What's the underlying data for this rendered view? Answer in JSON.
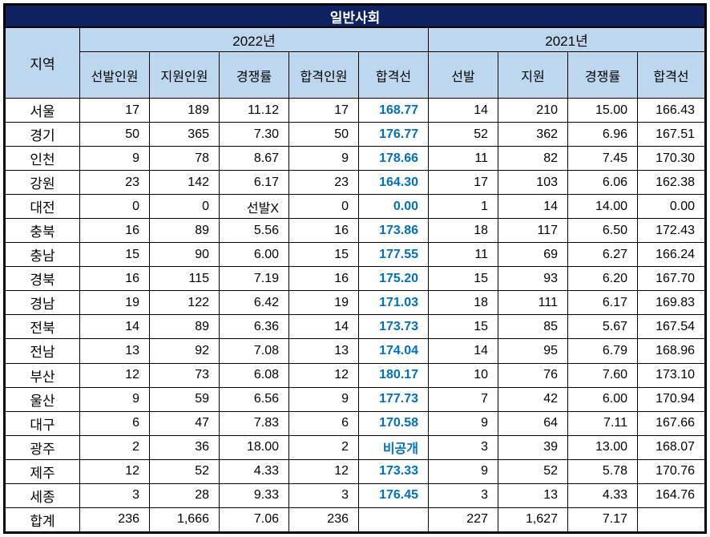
{
  "title": "일반사회",
  "header": {
    "region_label": "지역",
    "groups": [
      {
        "label": "2022년",
        "columns": [
          "선발인원",
          "지원인원",
          "경쟁률",
          "합격인원",
          "합격선"
        ]
      },
      {
        "label": "2021년",
        "columns": [
          "선발",
          "지원",
          "경쟁률",
          "합격선"
        ]
      }
    ]
  },
  "highlight": {
    "column_index": 4,
    "note": "2022 합격선 values shown bold blue"
  },
  "rows": [
    {
      "region": "서울",
      "values": [
        "17",
        "189",
        "11.12",
        "17",
        "168.77",
        "14",
        "210",
        "15.00",
        "166.43"
      ]
    },
    {
      "region": "경기",
      "values": [
        "50",
        "365",
        "7.30",
        "50",
        "176.77",
        "52",
        "362",
        "6.96",
        "167.51"
      ]
    },
    {
      "region": "인천",
      "values": [
        "9",
        "78",
        "8.67",
        "9",
        "178.66",
        "11",
        "82",
        "7.45",
        "170.30"
      ]
    },
    {
      "region": "강원",
      "values": [
        "23",
        "142",
        "6.17",
        "23",
        "164.30",
        "17",
        "103",
        "6.06",
        "162.38"
      ]
    },
    {
      "region": "대전",
      "values": [
        "0",
        "0",
        "선발X",
        "0",
        "0.00",
        "1",
        "14",
        "14.00",
        "0.00"
      ]
    },
    {
      "region": "충북",
      "values": [
        "16",
        "89",
        "5.56",
        "16",
        "173.86",
        "18",
        "117",
        "6.50",
        "172.43"
      ]
    },
    {
      "region": "충남",
      "values": [
        "15",
        "90",
        "6.00",
        "15",
        "177.55",
        "11",
        "69",
        "6.27",
        "166.24"
      ]
    },
    {
      "region": "경북",
      "values": [
        "16",
        "115",
        "7.19",
        "16",
        "175.20",
        "15",
        "93",
        "6.20",
        "167.70"
      ]
    },
    {
      "region": "경남",
      "values": [
        "19",
        "122",
        "6.42",
        "19",
        "171.03",
        "18",
        "111",
        "6.17",
        "169.83"
      ]
    },
    {
      "region": "전북",
      "values": [
        "14",
        "89",
        "6.36",
        "14",
        "173.73",
        "15",
        "85",
        "5.67",
        "167.54"
      ]
    },
    {
      "region": "전남",
      "values": [
        "13",
        "92",
        "7.08",
        "13",
        "174.04",
        "14",
        "95",
        "6.79",
        "168.96"
      ]
    },
    {
      "region": "부산",
      "values": [
        "12",
        "73",
        "6.08",
        "12",
        "180.17",
        "10",
        "76",
        "7.60",
        "173.10"
      ]
    },
    {
      "region": "울산",
      "values": [
        "9",
        "59",
        "6.56",
        "9",
        "177.73",
        "7",
        "42",
        "6.00",
        "170.94"
      ]
    },
    {
      "region": "대구",
      "values": [
        "6",
        "47",
        "7.83",
        "6",
        "170.58",
        "9",
        "64",
        "7.11",
        "167.66"
      ]
    },
    {
      "region": "광주",
      "values": [
        "2",
        "36",
        "18.00",
        "2",
        "비공개",
        "3",
        "39",
        "13.00",
        "168.07"
      ]
    },
    {
      "region": "제주",
      "values": [
        "12",
        "52",
        "4.33",
        "12",
        "173.33",
        "9",
        "52",
        "5.78",
        "170.76"
      ]
    },
    {
      "region": "세종",
      "values": [
        "3",
        "28",
        "9.33",
        "3",
        "176.45",
        "3",
        "13",
        "4.33",
        "164.76"
      ]
    },
    {
      "region": "합계",
      "values": [
        "236",
        "1,666",
        "7.06",
        "236",
        "",
        "227",
        "1,627",
        "7.17",
        ""
      ]
    }
  ],
  "colors": {
    "title_bar": "#0e2262",
    "header_bg": "#bdd7ee",
    "highlight_text": "#0070c0",
    "grid": "#000000"
  }
}
